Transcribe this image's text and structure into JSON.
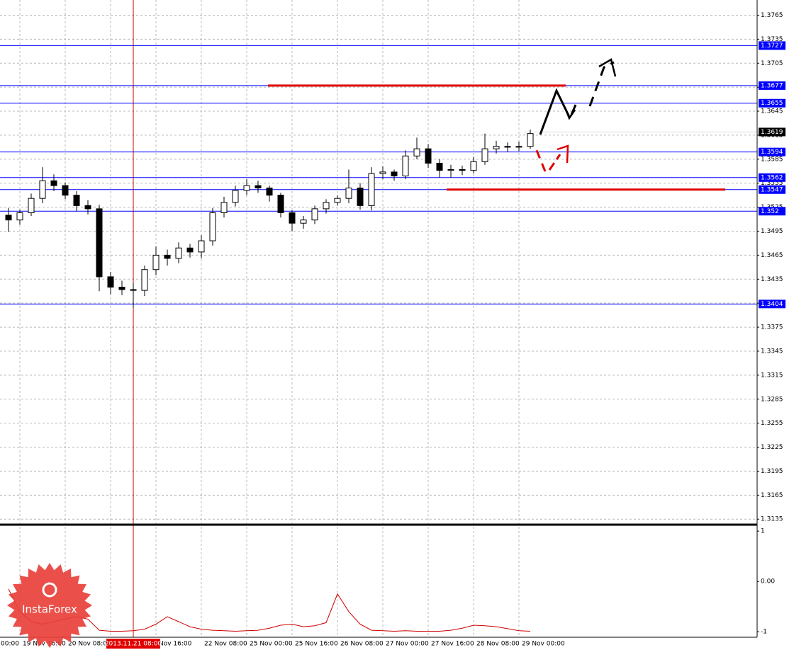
{
  "chart_data": [
    {
      "type": "candlestick",
      "categories": [
        "00:00",
        null,
        null,
        null,
        "19 Nov 16:00",
        null,
        null,
        null,
        "20 Nov 08:00",
        null,
        null,
        null,
        null,
        null,
        null,
        null,
        "Nov 16:00",
        null,
        null,
        null,
        "22 Nov 08:00",
        null,
        null,
        null,
        "25 Nov 00:00",
        null,
        null,
        null,
        "25 Nov 16:00",
        null,
        null,
        null,
        "26 Nov 08:00",
        null,
        null,
        null,
        "27 Nov 00:00",
        null,
        null,
        null,
        "27 Nov 16:00",
        null,
        null,
        null,
        "28 Nov 08:00",
        null,
        null,
        null,
        "29 Nov 00:00",
        null
      ],
      "open": [
        null,
        null,
        null,
        1.3515,
        1.3509,
        1.3518,
        1.3536,
        1.3558,
        1.3552,
        1.354,
        1.3527,
        1.3523,
        1.3438,
        1.3425,
        1.3422,
        1.3421,
        1.3447,
        1.3465,
        1.3461,
        1.3474,
        1.3469,
        1.3483,
        1.3518,
        1.3531,
        1.3546,
        1.3552,
        1.3549,
        1.354,
        1.3518,
        1.3505,
        1.3509,
        1.3523,
        1.3531,
        1.3536,
        1.3549,
        1.3527,
        1.3567,
        1.3569,
        1.3564,
        1.3589,
        1.3598,
        1.358,
        1.3571,
        1.3572,
        1.3571,
        1.3582,
        1.3598,
        1.3601,
        1.36,
        1.3601
      ],
      "high": [
        null,
        null,
        null,
        1.3524,
        1.3522,
        1.3542,
        1.3575,
        1.3566,
        1.3556,
        1.3545,
        1.3534,
        1.3528,
        1.3444,
        1.3433,
        1.343,
        1.3452,
        1.3476,
        1.3472,
        1.3481,
        1.3479,
        1.349,
        1.3524,
        1.3538,
        1.3552,
        1.356,
        1.3558,
        1.3552,
        1.3543,
        1.3521,
        1.3514,
        1.3527,
        1.3535,
        1.354,
        1.3572,
        1.3555,
        1.3575,
        1.3576,
        1.3572,
        1.3596,
        1.3612,
        1.3604,
        1.3585,
        1.3578,
        1.3577,
        1.3588,
        1.3617,
        1.3608,
        1.3606,
        1.3607,
        1.3622
      ],
      "low": [
        null,
        null,
        null,
        1.3494,
        1.3503,
        1.3514,
        1.353,
        1.3545,
        1.3535,
        1.352,
        1.3516,
        1.342,
        1.3416,
        1.3415,
        1.3399,
        1.3414,
        1.344,
        1.3452,
        1.3455,
        1.3462,
        1.3461,
        1.3477,
        1.3512,
        1.3526,
        1.354,
        1.3543,
        1.3532,
        1.3512,
        1.3495,
        1.3498,
        1.3504,
        1.3517,
        1.3527,
        1.353,
        1.3522,
        1.3521,
        1.356,
        1.3558,
        1.356,
        1.3585,
        1.3574,
        1.3562,
        1.3562,
        1.3565,
        1.3567,
        1.3578,
        1.3592,
        1.3594,
        1.3595,
        1.3598
      ],
      "close": [
        null,
        null,
        null,
        1.3509,
        1.3518,
        1.3536,
        1.3558,
        1.3552,
        1.354,
        1.3527,
        1.3523,
        1.3438,
        1.3425,
        1.3422,
        1.3421,
        1.3447,
        1.3465,
        1.3461,
        1.3474,
        1.3469,
        1.3483,
        1.3518,
        1.3531,
        1.3546,
        1.3552,
        1.3549,
        1.354,
        1.3518,
        1.3505,
        1.3509,
        1.3523,
        1.3531,
        1.3536,
        1.3549,
        1.3527,
        1.3567,
        1.3569,
        1.3564,
        1.3589,
        1.3598,
        1.358,
        1.3571,
        1.3572,
        1.3571,
        1.3582,
        1.3598,
        1.3601,
        1.36,
        1.3601,
        1.3617
      ],
      "ylim": [
        1.3129,
        1.3784
      ],
      "yticks": [
        1.3765,
        1.3735,
        1.3705,
        1.3675,
        1.3645,
        1.3615,
        1.3585,
        1.3555,
        1.3525,
        1.3495,
        1.3465,
        1.3435,
        1.3405,
        1.3375,
        1.3345,
        1.3315,
        1.3285,
        1.3255,
        1.3225,
        1.3195,
        1.3165,
        1.3135
      ],
      "grid": true,
      "levels": [
        1.3727,
        1.3677,
        1.3655,
        1.3594,
        1.3562,
        1.3547,
        1.352,
        1.3404
      ],
      "level_color": "#0000ff",
      "red_lines": [
        1.3677,
        1.3547
      ],
      "current_price": 1.3619,
      "crosshair_label": "2013.11.21 08:00",
      "logo_text": "InstaForex"
    },
    {
      "type": "line",
      "values": [
        null,
        null,
        null,
        -0.15,
        -0.6,
        -0.8,
        -0.85,
        -0.8,
        -0.75,
        -0.7,
        -0.75,
        -0.97,
        -0.99,
        -0.99,
        -0.98,
        -0.95,
        -0.85,
        -0.7,
        -0.8,
        -0.9,
        -0.95,
        -0.97,
        -0.98,
        -0.99,
        -0.98,
        -0.97,
        -0.93,
        -0.87,
        -0.85,
        -0.9,
        -0.88,
        -0.82,
        -0.25,
        -0.6,
        -0.85,
        -0.97,
        -0.98,
        -0.99,
        -0.98,
        -0.99,
        -0.99,
        -0.99,
        -0.97,
        -0.93,
        -0.87,
        -0.88,
        -0.9,
        -0.94,
        -0.98,
        -0.99
      ],
      "color": "#cc0000",
      "ylim": [
        -1.11,
        1.1
      ],
      "yticks": [
        1,
        {
          "value": 0,
          "label": "0.00"
        },
        -1
      ]
    }
  ]
}
